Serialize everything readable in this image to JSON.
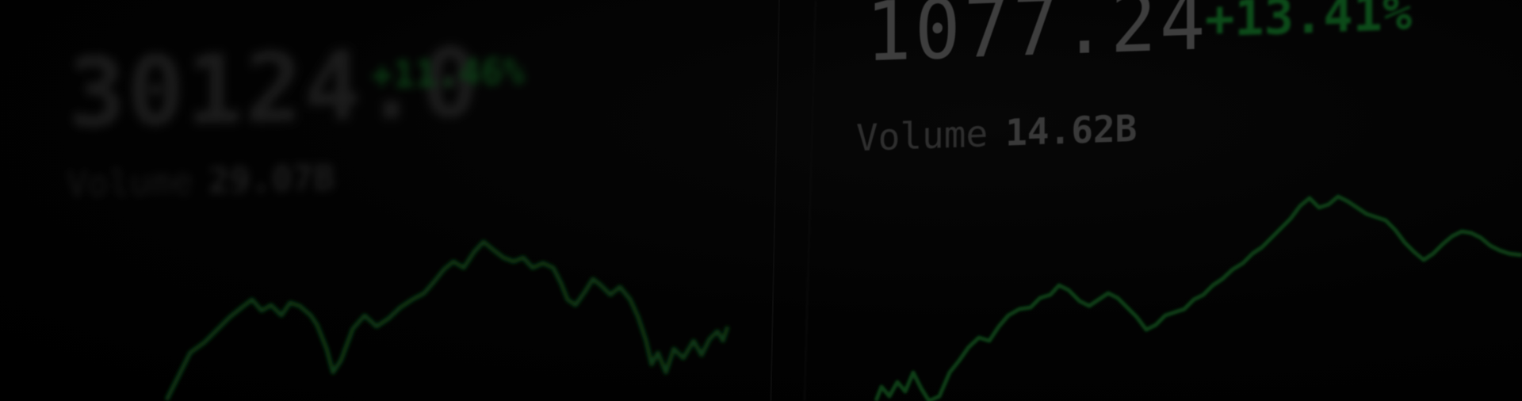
{
  "left_ticker": {
    "label": "",
    "price": "30124.0",
    "change": "+11.46%",
    "volume_label": "Volume",
    "volume_value": "29.07B"
  },
  "right_ticker": {
    "price": "1077.24",
    "change": "+13.41%",
    "volume_label": "Volume",
    "volume_value": "14.62B"
  },
  "colors": {
    "background": "#000000",
    "price_text": "#3e3e3e",
    "change_green": "#0c4a19",
    "chart_line": "#0a3a14"
  }
}
